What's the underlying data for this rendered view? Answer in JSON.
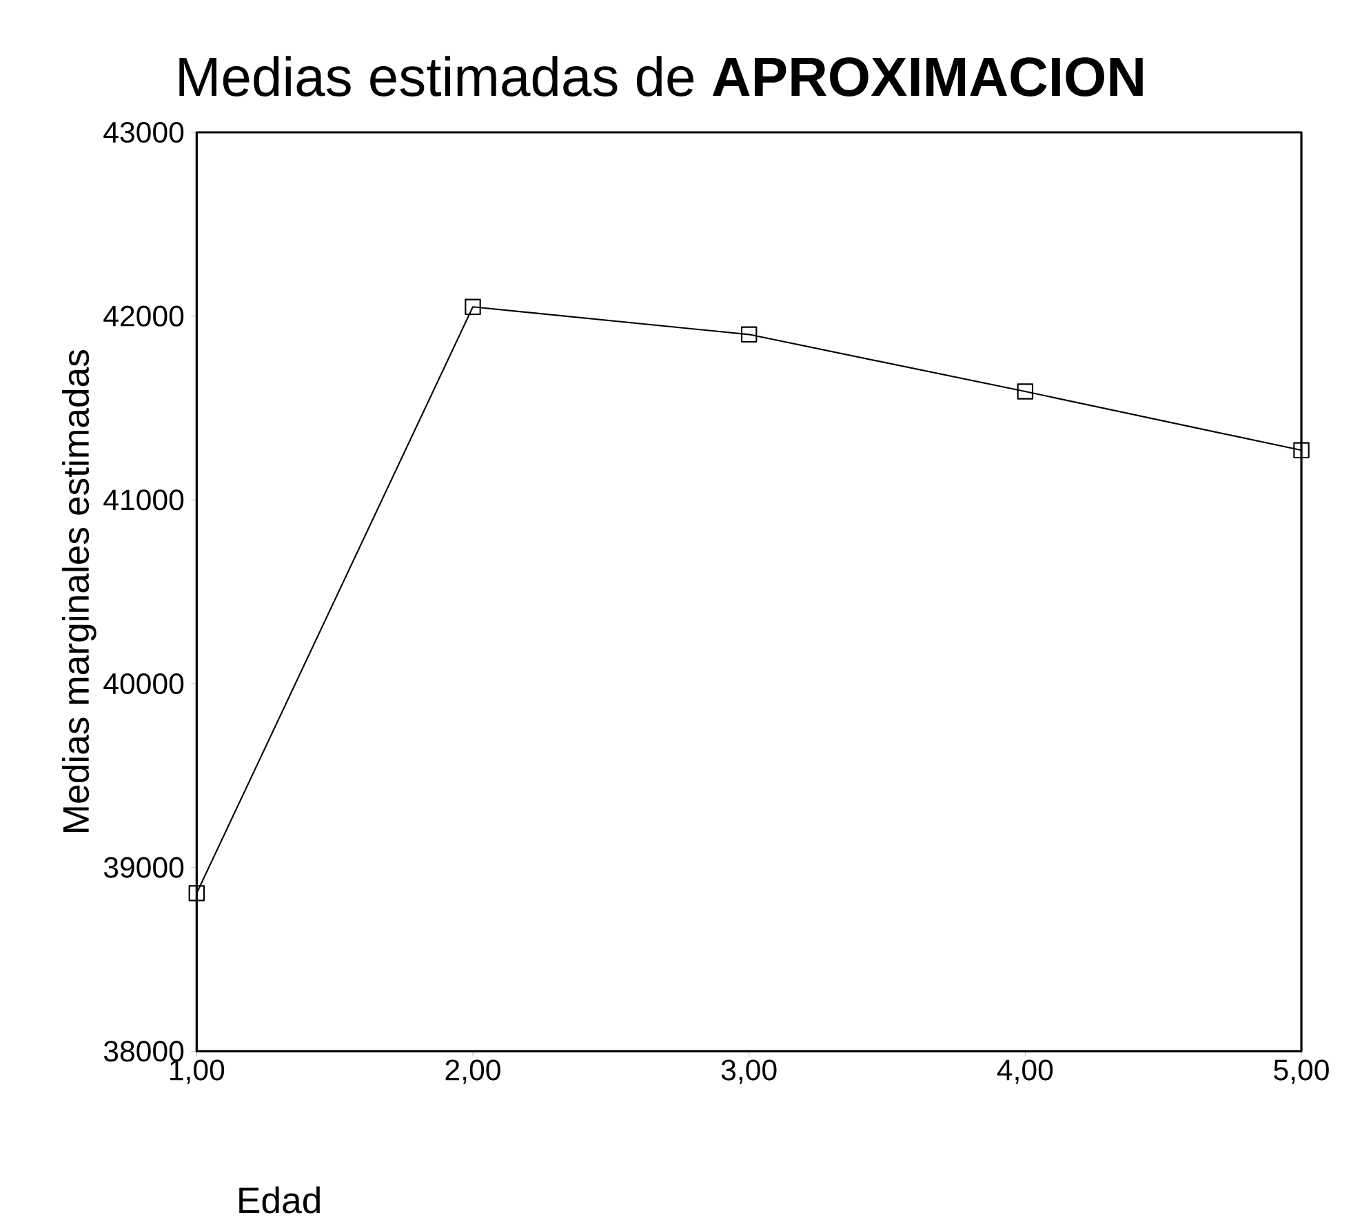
{
  "chart_data": {
    "type": "line",
    "title": "Medias estimadas de **APROXIMACION**",
    "xlabel": "Edad",
    "ylabel": "Medias marginales estimadas",
    "x": [
      1,
      2,
      3,
      4,
      5
    ],
    "series": [
      {
        "color": "#000000",
        "values": [
          38860,
          42050,
          41900,
          41590,
          41270
        ]
      }
    ],
    "xlim": [
      1,
      5
    ],
    "ylim": [
      38000,
      43000
    ],
    "xticks": [
      {
        "value": 1,
        "label": "1,00"
      },
      {
        "value": 2,
        "label": "2,00"
      },
      {
        "value": 3,
        "label": "3,00"
      },
      {
        "value": 4,
        "label": "4,00"
      },
      {
        "value": 5,
        "label": "5,00"
      }
    ],
    "yticks": [
      38000,
      39000,
      40000,
      41000,
      42000,
      43000
    ],
    "marker": "square",
    "line_style": "solid",
    "grid": false
  }
}
